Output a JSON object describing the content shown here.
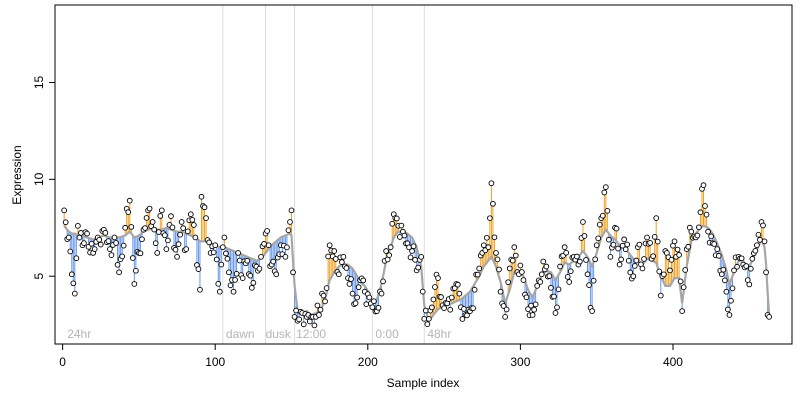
{
  "chart_data": {
    "type": "scatter",
    "xlabel": "Sample index",
    "ylabel": "Expression",
    "xlim": [
      -5,
      478
    ],
    "ylim": [
      1.5,
      19
    ],
    "x_ticks": [
      0,
      100,
      200,
      300,
      400
    ],
    "y_ticks": [
      5,
      10,
      15
    ],
    "grid": false,
    "legend": "none",
    "colors": {
      "baseline": "#a6a6a6",
      "above": "#f0a020",
      "below": "#6495ed",
      "point_stroke": "#000000",
      "point_fill": "#ffffff",
      "vline": "#dddddd",
      "annotation": "#b5b5b5"
    },
    "vlines": [
      105,
      133,
      152,
      203,
      237
    ],
    "annotations": [
      {
        "text": "24hr",
        "x": 3
      },
      {
        "text": "dawn",
        "x": 107
      },
      {
        "text": "dusk",
        "x": 133
      },
      {
        "text": "12:00",
        "x": 153
      },
      {
        "text": "0:00",
        "x": 205
      },
      {
        "text": "48hr",
        "x": 239
      }
    ],
    "anchors": [
      [
        1,
        8.4,
        7.6
      ],
      [
        4,
        7.0,
        7.3
      ],
      [
        6,
        5.1,
        7.2
      ],
      [
        8,
        4.1,
        7.2
      ],
      [
        10,
        7.6,
        7.1
      ],
      [
        13,
        6.6,
        7.1
      ],
      [
        16,
        7.2,
        7.0
      ],
      [
        20,
        6.2,
        6.9
      ],
      [
        23,
        7.0,
        7.0
      ],
      [
        27,
        7.4,
        7.1
      ],
      [
        31,
        6.4,
        7.0
      ],
      [
        34,
        7.0,
        7.0
      ],
      [
        37,
        5.2,
        7.0
      ],
      [
        41,
        7.5,
        7.1
      ],
      [
        44,
        8.9,
        7.3
      ],
      [
        47,
        4.6,
        7.0
      ],
      [
        50,
        6.2,
        7.1
      ],
      [
        53,
        7.4,
        7.3
      ],
      [
        56,
        8.4,
        7.4
      ],
      [
        59,
        7.8,
        7.5
      ],
      [
        62,
        6.2,
        7.4
      ],
      [
        65,
        8.4,
        7.4
      ],
      [
        68,
        6.4,
        7.5
      ],
      [
        71,
        8.1,
        7.4
      ],
      [
        75,
        6.0,
        7.3
      ],
      [
        78,
        7.8,
        7.3
      ],
      [
        81,
        6.4,
        7.2
      ],
      [
        84,
        8.2,
        7.1
      ],
      [
        87,
        7.0,
        7.0
      ],
      [
        90,
        4.3,
        6.8
      ],
      [
        91,
        9.1,
        6.8
      ],
      [
        94,
        8.0,
        6.8
      ],
      [
        97,
        6.2,
        6.7
      ],
      [
        100,
        6.6,
        6.6
      ],
      [
        103,
        4.2,
        6.5
      ],
      [
        106,
        7.0,
        6.5
      ],
      [
        109,
        5.2,
        6.4
      ],
      [
        112,
        4.2,
        6.3
      ],
      [
        115,
        6.2,
        6.2
      ],
      [
        118,
        4.9,
        6.1
      ],
      [
        121,
        5.8,
        6.0
      ],
      [
        124,
        4.4,
        5.9
      ],
      [
        127,
        5.5,
        5.8
      ],
      [
        130,
        6.0,
        5.9
      ],
      [
        133,
        7.2,
        6.2
      ],
      [
        135,
        6.6,
        6.4
      ],
      [
        137,
        5.6,
        6.6
      ],
      [
        140,
        5.1,
        6.8
      ],
      [
        143,
        6.6,
        7.0
      ],
      [
        146,
        6.0,
        7.1
      ],
      [
        149,
        7.8,
        7.2
      ],
      [
        150,
        8.4,
        7.1
      ],
      [
        152,
        2.9,
        4.5
      ],
      [
        154,
        2.7,
        3.2
      ],
      [
        157,
        3.1,
        3.1
      ],
      [
        160,
        2.9,
        3.2
      ],
      [
        163,
        2.9,
        3.0
      ],
      [
        166,
        2.9,
        3.1
      ],
      [
        168,
        3.0,
        3.2
      ],
      [
        170,
        4.1,
        3.4
      ],
      [
        172,
        3.7,
        3.8
      ],
      [
        175,
        6.6,
        4.8
      ],
      [
        178,
        6.3,
        5.2
      ],
      [
        181,
        5.1,
        5.5
      ],
      [
        184,
        6.0,
        5.6
      ],
      [
        187,
        4.9,
        5.6
      ],
      [
        190,
        4.1,
        5.4
      ],
      [
        193,
        3.9,
        5.0
      ],
      [
        195,
        4.8,
        4.7
      ],
      [
        198,
        4.2,
        4.5
      ],
      [
        201,
        3.9,
        4.1
      ],
      [
        203,
        3.4,
        3.6
      ],
      [
        206,
        3.2,
        3.8
      ],
      [
        209,
        4.1,
        4.6
      ],
      [
        212,
        6.3,
        5.8
      ],
      [
        215,
        6.5,
        6.5
      ],
      [
        217,
        8.2,
        7.0
      ],
      [
        220,
        7.6,
        7.3
      ],
      [
        223,
        7.3,
        7.3
      ],
      [
        226,
        6.7,
        7.2
      ],
      [
        229,
        6.3,
        7.0
      ],
      [
        232,
        5.3,
        6.5
      ],
      [
        235,
        6.0,
        5.5
      ],
      [
        237,
        2.8,
        3.5
      ],
      [
        240,
        2.8,
        2.7
      ],
      [
        243,
        3.8,
        3.0
      ],
      [
        246,
        4.9,
        3.3
      ],
      [
        249,
        3.5,
        3.4
      ],
      [
        252,
        3.6,
        3.5
      ],
      [
        255,
        3.9,
        3.6
      ],
      [
        258,
        4.6,
        3.7
      ],
      [
        261,
        3.4,
        3.8
      ],
      [
        264,
        3.0,
        4.0
      ],
      [
        267,
        3.2,
        4.2
      ],
      [
        270,
        4.3,
        4.6
      ],
      [
        273,
        5.4,
        5.0
      ],
      [
        276,
        6.6,
        5.5
      ],
      [
        279,
        6.5,
        5.8
      ],
      [
        281,
        9.8,
        6.0
      ],
      [
        284,
        6.2,
        5.5
      ],
      [
        287,
        4.2,
        4.7
      ],
      [
        290,
        2.9,
        3.6
      ],
      [
        293,
        5.4,
        4.3
      ],
      [
        296,
        6.5,
        5.2
      ],
      [
        299,
        5.1,
        5.2
      ],
      [
        302,
        4.8,
        5.0
      ],
      [
        305,
        3.3,
        4.3
      ],
      [
        308,
        3.0,
        3.9
      ],
      [
        311,
        4.5,
        4.5
      ],
      [
        314,
        5.1,
        5.0
      ],
      [
        317,
        5.5,
        5.3
      ],
      [
        320,
        4.4,
        5.2
      ],
      [
        323,
        3.1,
        4.8
      ],
      [
        326,
        5.5,
        5.2
      ],
      [
        329,
        6.5,
        5.7
      ],
      [
        332,
        4.7,
        5.6
      ],
      [
        335,
        6.0,
        5.8
      ],
      [
        338,
        5.6,
        6.0
      ],
      [
        341,
        7.8,
        6.3
      ],
      [
        344,
        5.1,
        6.0
      ],
      [
        347,
        3.2,
        5.5
      ],
      [
        350,
        6.6,
        6.2
      ],
      [
        353,
        8.0,
        7.0
      ],
      [
        356,
        9.6,
        7.4
      ],
      [
        359,
        6.0,
        7.1
      ],
      [
        362,
        7.5,
        6.9
      ],
      [
        365,
        5.6,
        6.6
      ],
      [
        368,
        6.9,
        6.5
      ],
      [
        371,
        5.8,
        6.2
      ],
      [
        374,
        5.0,
        5.9
      ],
      [
        377,
        6.5,
        5.8
      ],
      [
        380,
        5.4,
        5.6
      ],
      [
        383,
        7.0,
        5.9
      ],
      [
        386,
        5.9,
        5.8
      ],
      [
        389,
        8.0,
        5.7
      ],
      [
        392,
        4.0,
        5.0
      ],
      [
        395,
        6.3,
        4.5
      ],
      [
        398,
        5.3,
        4.5
      ],
      [
        401,
        6.8,
        4.9
      ],
      [
        404,
        6.1,
        4.9
      ],
      [
        406,
        3.2,
        3.6
      ],
      [
        409,
        6.4,
        5.5
      ],
      [
        412,
        7.3,
        6.8
      ],
      [
        415,
        7.0,
        7.2
      ],
      [
        418,
        8.3,
        7.5
      ],
      [
        420,
        9.7,
        7.6
      ],
      [
        423,
        7.3,
        7.5
      ],
      [
        426,
        6.7,
        7.2
      ],
      [
        429,
        6.4,
        6.7
      ],
      [
        432,
        5.1,
        6.1
      ],
      [
        435,
        4.2,
        5.3
      ],
      [
        437,
        3.0,
        4.6
      ],
      [
        440,
        5.3,
        5.2
      ],
      [
        443,
        6.0,
        5.8
      ],
      [
        446,
        5.6,
        5.8
      ],
      [
        449,
        4.8,
        5.4
      ],
      [
        452,
        5.9,
        5.8
      ],
      [
        455,
        6.6,
        6.4
      ],
      [
        458,
        7.8,
        6.9
      ],
      [
        460,
        6.8,
        6.5
      ],
      [
        461,
        5.2,
        5.6
      ],
      [
        462,
        3.0,
        4.2
      ],
      [
        463,
        2.9,
        3.0
      ]
    ]
  }
}
